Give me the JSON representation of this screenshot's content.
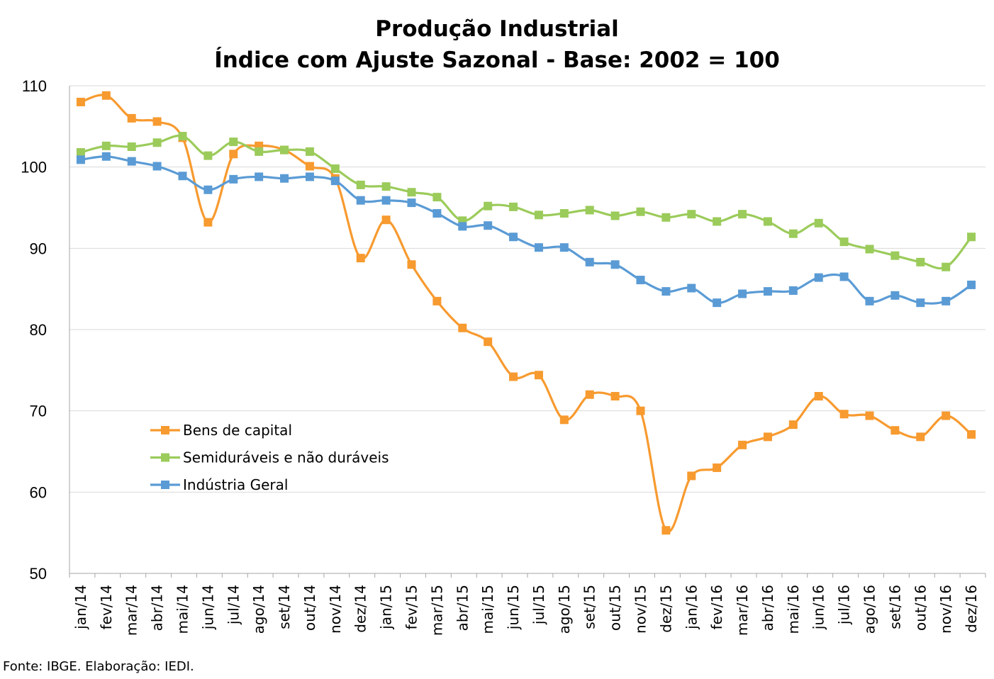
{
  "chart_data": {
    "type": "line",
    "title": "Produção Industrial",
    "subtitle": "Índice com Ajuste Sazonal - Base: 2002 = 100",
    "xlabel": "",
    "ylabel": "",
    "ylim": [
      50,
      110
    ],
    "yticks": [
      "50",
      "60",
      "70",
      "80",
      "90",
      "100",
      "110"
    ],
    "grid": true,
    "legend_position": "inside-left",
    "categories": [
      "jan/14",
      "fev/14",
      "mar/14",
      "abr/14",
      "mai/14",
      "jun/14",
      "jul/14",
      "ago/14",
      "set/14",
      "out/14",
      "nov/14",
      "dez/14",
      "jan/15",
      "fev/15",
      "mar/15",
      "abr/15",
      "mai/15",
      "jun/15",
      "jul/15",
      "ago/15",
      "set/15",
      "out/15",
      "nov/15",
      "dez/15",
      "jan/16",
      "fev/16",
      "mar/16",
      "abr/16",
      "mai/16",
      "jun/16",
      "jul/16",
      "ago/16",
      "set/16",
      "out/16",
      "nov/16",
      "dez/16"
    ],
    "series": [
      {
        "name": "Bens de capital",
        "color": "#F79A2F",
        "values": [
          108.0,
          108.8,
          106.0,
          105.6,
          103.6,
          93.2,
          101.6,
          102.6,
          102.1,
          100.1,
          98.6,
          88.8,
          93.5,
          88.0,
          83.5,
          80.2,
          78.5,
          74.2,
          74.4,
          68.9,
          72.0,
          71.8,
          70.0,
          55.3,
          62.0,
          63.0,
          65.8,
          66.8,
          68.3,
          71.8,
          69.6,
          69.4,
          67.6,
          66.8,
          69.4,
          67.1
        ]
      },
      {
        "name": "Semiduráveis e não duráveis",
        "color": "#9BCB5A",
        "values": [
          101.8,
          102.6,
          102.5,
          103.0,
          103.8,
          101.4,
          103.1,
          101.9,
          102.1,
          101.9,
          99.8,
          97.8,
          97.6,
          96.9,
          96.3,
          93.4,
          95.2,
          95.1,
          94.1,
          94.3,
          94.7,
          94.0,
          94.5,
          93.8,
          94.2,
          93.3,
          94.2,
          93.3,
          91.8,
          93.1,
          90.8,
          89.9,
          89.1,
          88.3,
          87.7,
          91.4
        ]
      },
      {
        "name": "Indústria Geral",
        "color": "#5A9BD5",
        "values": [
          100.9,
          101.3,
          100.7,
          100.1,
          98.9,
          97.2,
          98.5,
          98.8,
          98.6,
          98.8,
          98.3,
          95.9,
          95.9,
          95.6,
          94.3,
          92.7,
          92.8,
          91.4,
          90.1,
          90.1,
          88.3,
          88.0,
          86.1,
          84.7,
          85.1,
          83.3,
          84.4,
          84.7,
          84.8,
          86.4,
          86.5,
          83.5,
          84.2,
          83.3,
          83.5,
          85.5
        ]
      }
    ],
    "source": "Fonte: IBGE. Elaboração: IEDI."
  },
  "colors": {
    "grid": "#D9D9D9",
    "axis": "#A6A6A6"
  }
}
